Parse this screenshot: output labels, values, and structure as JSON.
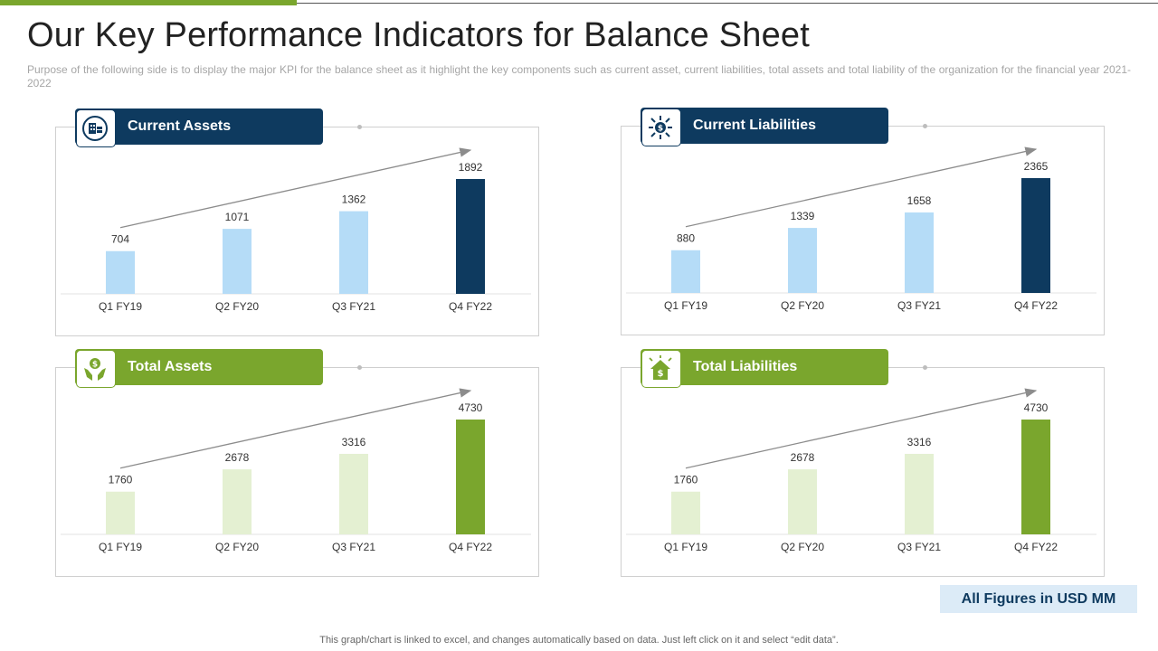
{
  "title": "Our Key Performance Indicators for Balance Sheet",
  "description": "Purpose of the following side is to display the major KPI for the balance sheet as it highlight the key components such as current asset, current liabilities, total assets and total liability of the organization for the financial year 2021-2022",
  "badge": "All Figures in USD MM",
  "footnote": "This graph/chart is linked to excel, and changes automatically based on data. Just left click on it and select “edit data”.",
  "colors": {
    "navy": "#0e3a5f",
    "light_blue": "#b5dcf7",
    "green": "#7aa62d",
    "light_green": "#e4f0d2"
  },
  "chart_data": [
    {
      "type": "bar",
      "title": "Current Assets",
      "icon": "money-building-icon",
      "categories": [
        "Q1 FY19",
        "Q2 FY20",
        "Q3 FY21",
        "Q4 FY22"
      ],
      "values": [
        704,
        1071,
        1362,
        1892
      ],
      "ylim": [
        0,
        2000
      ],
      "xlabel": "",
      "ylabel": "",
      "trend_arrow": true
    },
    {
      "type": "bar",
      "title": "Current Liabilities",
      "icon": "dollar-arrows-icon",
      "categories": [
        "Q1 FY19",
        "Q2 FY20",
        "Q3 FY21",
        "Q4 FY22"
      ],
      "values": [
        880,
        1339,
        1658,
        2365
      ],
      "ylim": [
        0,
        2500
      ],
      "xlabel": "",
      "ylabel": "",
      "trend_arrow": true
    },
    {
      "type": "bar",
      "title": "Total Assets",
      "icon": "hands-money-icon",
      "categories": [
        "Q1 FY19",
        "Q2 FY20",
        "Q3 FY21",
        "Q4 FY22"
      ],
      "values": [
        1760,
        2678,
        3316,
        4730
      ],
      "ylim": [
        0,
        5000
      ],
      "xlabel": "",
      "ylabel": "",
      "trend_arrow": true
    },
    {
      "type": "bar",
      "title": "Total Liabilities",
      "icon": "house-dollar-icon",
      "categories": [
        "Q1 FY19",
        "Q2 FY20",
        "Q3 FY21",
        "Q4 FY22"
      ],
      "values": [
        1760,
        2678,
        3316,
        4730
      ],
      "ylim": [
        0,
        5000
      ],
      "xlabel": "",
      "ylabel": "",
      "trend_arrow": true
    }
  ]
}
